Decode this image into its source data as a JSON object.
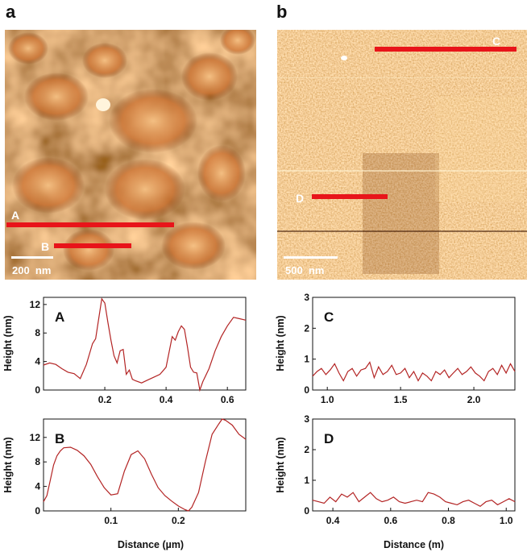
{
  "figure": {
    "panels": [
      {
        "letter": "a",
        "scale_bar": "200  nm",
        "line_labels": [
          "A",
          "B"
        ]
      },
      {
        "letter": "b",
        "scale_bar": "500  nm",
        "line_labels": [
          "C",
          "D"
        ]
      }
    ],
    "colors": {
      "line_overlay": "#e8141a",
      "profile": "#b32424",
      "afm_dark": "#4a1a02",
      "afm_light": "#f3b676"
    }
  },
  "chart_data": [
    {
      "type": "line",
      "title": "A",
      "xlabel": "",
      "ylabel": "Height (nm)",
      "xlim": [
        0,
        0.66
      ],
      "ylim": [
        0,
        13
      ],
      "xticks": [
        "0.2",
        "0.4",
        "0.6"
      ],
      "xtick_values": [
        0.2,
        0.4,
        0.6
      ],
      "yticks": [
        "0",
        "4",
        "8",
        "12"
      ],
      "ytick_values": [
        0,
        4,
        8,
        12
      ],
      "x": [
        0.0,
        0.02,
        0.04,
        0.06,
        0.08,
        0.1,
        0.12,
        0.14,
        0.16,
        0.17,
        0.18,
        0.19,
        0.2,
        0.21,
        0.22,
        0.23,
        0.24,
        0.25,
        0.26,
        0.27,
        0.28,
        0.29,
        0.3,
        0.32,
        0.34,
        0.36,
        0.38,
        0.4,
        0.42,
        0.43,
        0.44,
        0.45,
        0.46,
        0.47,
        0.48,
        0.49,
        0.5,
        0.51,
        0.52,
        0.54,
        0.56,
        0.58,
        0.6,
        0.62,
        0.64,
        0.66
      ],
      "y": [
        3.5,
        3.8,
        3.6,
        3.0,
        2.5,
        2.3,
        1.6,
        3.6,
        6.5,
        7.2,
        10.0,
        12.8,
        12.2,
        9.5,
        7.0,
        4.8,
        3.8,
        5.5,
        5.7,
        2.2,
        2.8,
        1.5,
        1.3,
        1.0,
        1.4,
        1.8,
        2.2,
        3.2,
        7.5,
        7.0,
        8.2,
        9.0,
        8.5,
        6.0,
        3.2,
        2.5,
        2.4,
        0.0,
        1.2,
        3.0,
        5.5,
        7.5,
        9.0,
        10.2,
        10.0,
        9.8
      ],
      "grid": false
    },
    {
      "type": "line",
      "title": "B",
      "xlabel": "",
      "ylabel": "Height (nm)",
      "xlim": [
        0,
        0.3
      ],
      "ylim": [
        0,
        15
      ],
      "xticks": [
        "0.1",
        "0.2"
      ],
      "xtick_values": [
        0.1,
        0.2
      ],
      "yticks": [
        "0",
        "4",
        "8",
        "12"
      ],
      "ytick_values": [
        0,
        4,
        8,
        12
      ],
      "x": [
        0.0,
        0.005,
        0.01,
        0.015,
        0.02,
        0.025,
        0.03,
        0.04,
        0.05,
        0.06,
        0.07,
        0.08,
        0.09,
        0.1,
        0.11,
        0.12,
        0.13,
        0.14,
        0.15,
        0.16,
        0.17,
        0.18,
        0.19,
        0.2,
        0.21,
        0.215,
        0.22,
        0.23,
        0.24,
        0.25,
        0.26,
        0.265,
        0.27,
        0.28,
        0.29,
        0.3
      ],
      "y": [
        1.5,
        2.5,
        5.0,
        7.5,
        9.0,
        9.8,
        10.3,
        10.4,
        9.9,
        9.0,
        7.6,
        5.6,
        3.8,
        2.6,
        2.8,
        6.5,
        9.2,
        9.8,
        8.5,
        6.0,
        3.8,
        2.5,
        1.6,
        0.8,
        0.2,
        0.0,
        0.6,
        3.0,
        8.0,
        12.5,
        14.2,
        15.0,
        14.8,
        14.0,
        12.5,
        11.7
      ],
      "grid": false
    },
    {
      "type": "line",
      "title": "C",
      "xlabel": "",
      "ylabel": "Height (nm)",
      "xlim": [
        0.9,
        2.28
      ],
      "ylim": [
        0,
        3
      ],
      "xticks": [
        "1.0",
        "1.5",
        "2.0"
      ],
      "xtick_values": [
        1.0,
        1.5,
        2.0
      ],
      "yticks": [
        "0",
        "1",
        "2",
        "3"
      ],
      "ytick_values": [
        0,
        1,
        2,
        3
      ],
      "x": [
        0.9,
        0.93,
        0.96,
        0.99,
        1.02,
        1.05,
        1.08,
        1.11,
        1.14,
        1.17,
        1.2,
        1.23,
        1.26,
        1.29,
        1.32,
        1.35,
        1.38,
        1.41,
        1.44,
        1.47,
        1.5,
        1.53,
        1.56,
        1.59,
        1.62,
        1.65,
        1.68,
        1.71,
        1.74,
        1.77,
        1.8,
        1.83,
        1.86,
        1.89,
        1.92,
        1.95,
        1.98,
        2.01,
        2.04,
        2.07,
        2.1,
        2.13,
        2.16,
        2.19,
        2.22,
        2.25,
        2.28
      ],
      "y": [
        0.45,
        0.6,
        0.7,
        0.5,
        0.65,
        0.85,
        0.55,
        0.3,
        0.6,
        0.7,
        0.45,
        0.65,
        0.7,
        0.9,
        0.4,
        0.75,
        0.5,
        0.6,
        0.8,
        0.5,
        0.55,
        0.7,
        0.4,
        0.6,
        0.3,
        0.55,
        0.45,
        0.3,
        0.6,
        0.5,
        0.65,
        0.4,
        0.55,
        0.7,
        0.5,
        0.6,
        0.75,
        0.55,
        0.45,
        0.3,
        0.6,
        0.7,
        0.5,
        0.8,
        0.55,
        0.85,
        0.6
      ],
      "grid": false
    },
    {
      "type": "line",
      "title": "D",
      "xlabel": "Distance (m)",
      "ylabel": "Height (nm)",
      "xlim": [
        0.33,
        1.03
      ],
      "ylim": [
        0,
        3
      ],
      "xticks": [
        "0.4",
        "0.6",
        "0.8",
        "1.0"
      ],
      "xtick_values": [
        0.4,
        0.6,
        0.8,
        1.0
      ],
      "yticks": [
        "0",
        "1",
        "2",
        "3"
      ],
      "ytick_values": [
        0,
        1,
        2,
        3
      ],
      "x": [
        0.33,
        0.35,
        0.37,
        0.39,
        0.41,
        0.43,
        0.45,
        0.47,
        0.49,
        0.51,
        0.53,
        0.55,
        0.57,
        0.59,
        0.61,
        0.63,
        0.65,
        0.67,
        0.69,
        0.71,
        0.73,
        0.75,
        0.77,
        0.79,
        0.81,
        0.83,
        0.85,
        0.87,
        0.89,
        0.91,
        0.93,
        0.95,
        0.97,
        0.99,
        1.01,
        1.03
      ],
      "y": [
        0.35,
        0.3,
        0.25,
        0.45,
        0.3,
        0.55,
        0.45,
        0.6,
        0.3,
        0.45,
        0.6,
        0.4,
        0.3,
        0.35,
        0.45,
        0.3,
        0.25,
        0.3,
        0.35,
        0.3,
        0.6,
        0.55,
        0.45,
        0.3,
        0.25,
        0.2,
        0.3,
        0.35,
        0.25,
        0.15,
        0.3,
        0.35,
        0.2,
        0.3,
        0.4,
        0.3
      ],
      "grid": false
    }
  ],
  "bottom_labels": {
    "left": "Distance (µm)"
  }
}
